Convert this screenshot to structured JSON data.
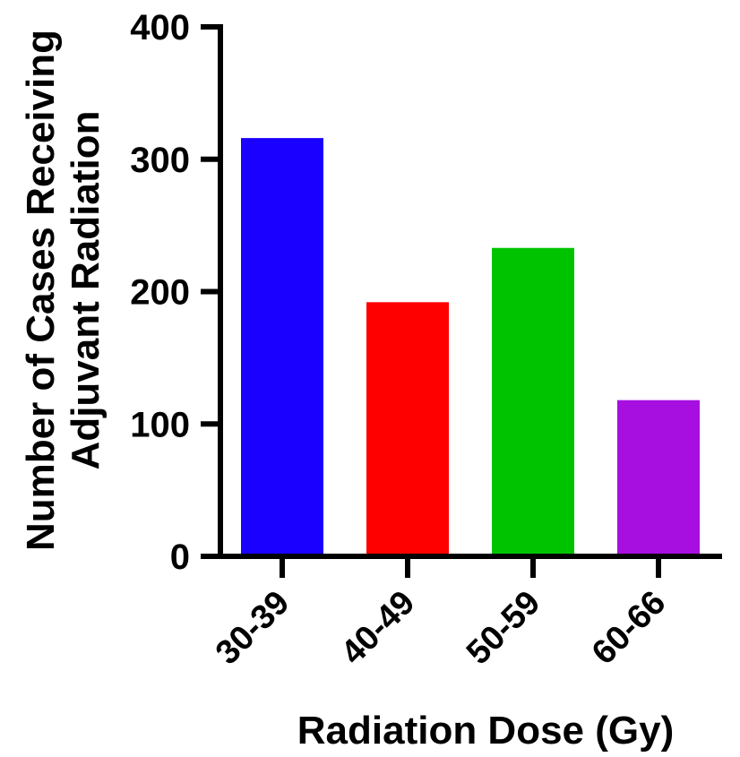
{
  "chart_data": {
    "type": "bar",
    "categories": [
      "30-39",
      "40-49",
      "50-59",
      "60-66"
    ],
    "values": [
      316,
      192,
      233,
      118
    ],
    "colors": [
      "#1a00ff",
      "#ff0000",
      "#00c300",
      "#a70ee0"
    ],
    "xlabel": "Radiation Dose (Gy)",
    "ylabel_lines": [
      "Number of Cases Receiving",
      "Adjuvant Radiation"
    ],
    "ylim": [
      0,
      400
    ],
    "yticks": [
      "0",
      "100",
      "200",
      "300",
      "400"
    ],
    "grid": false,
    "legend": "none"
  }
}
